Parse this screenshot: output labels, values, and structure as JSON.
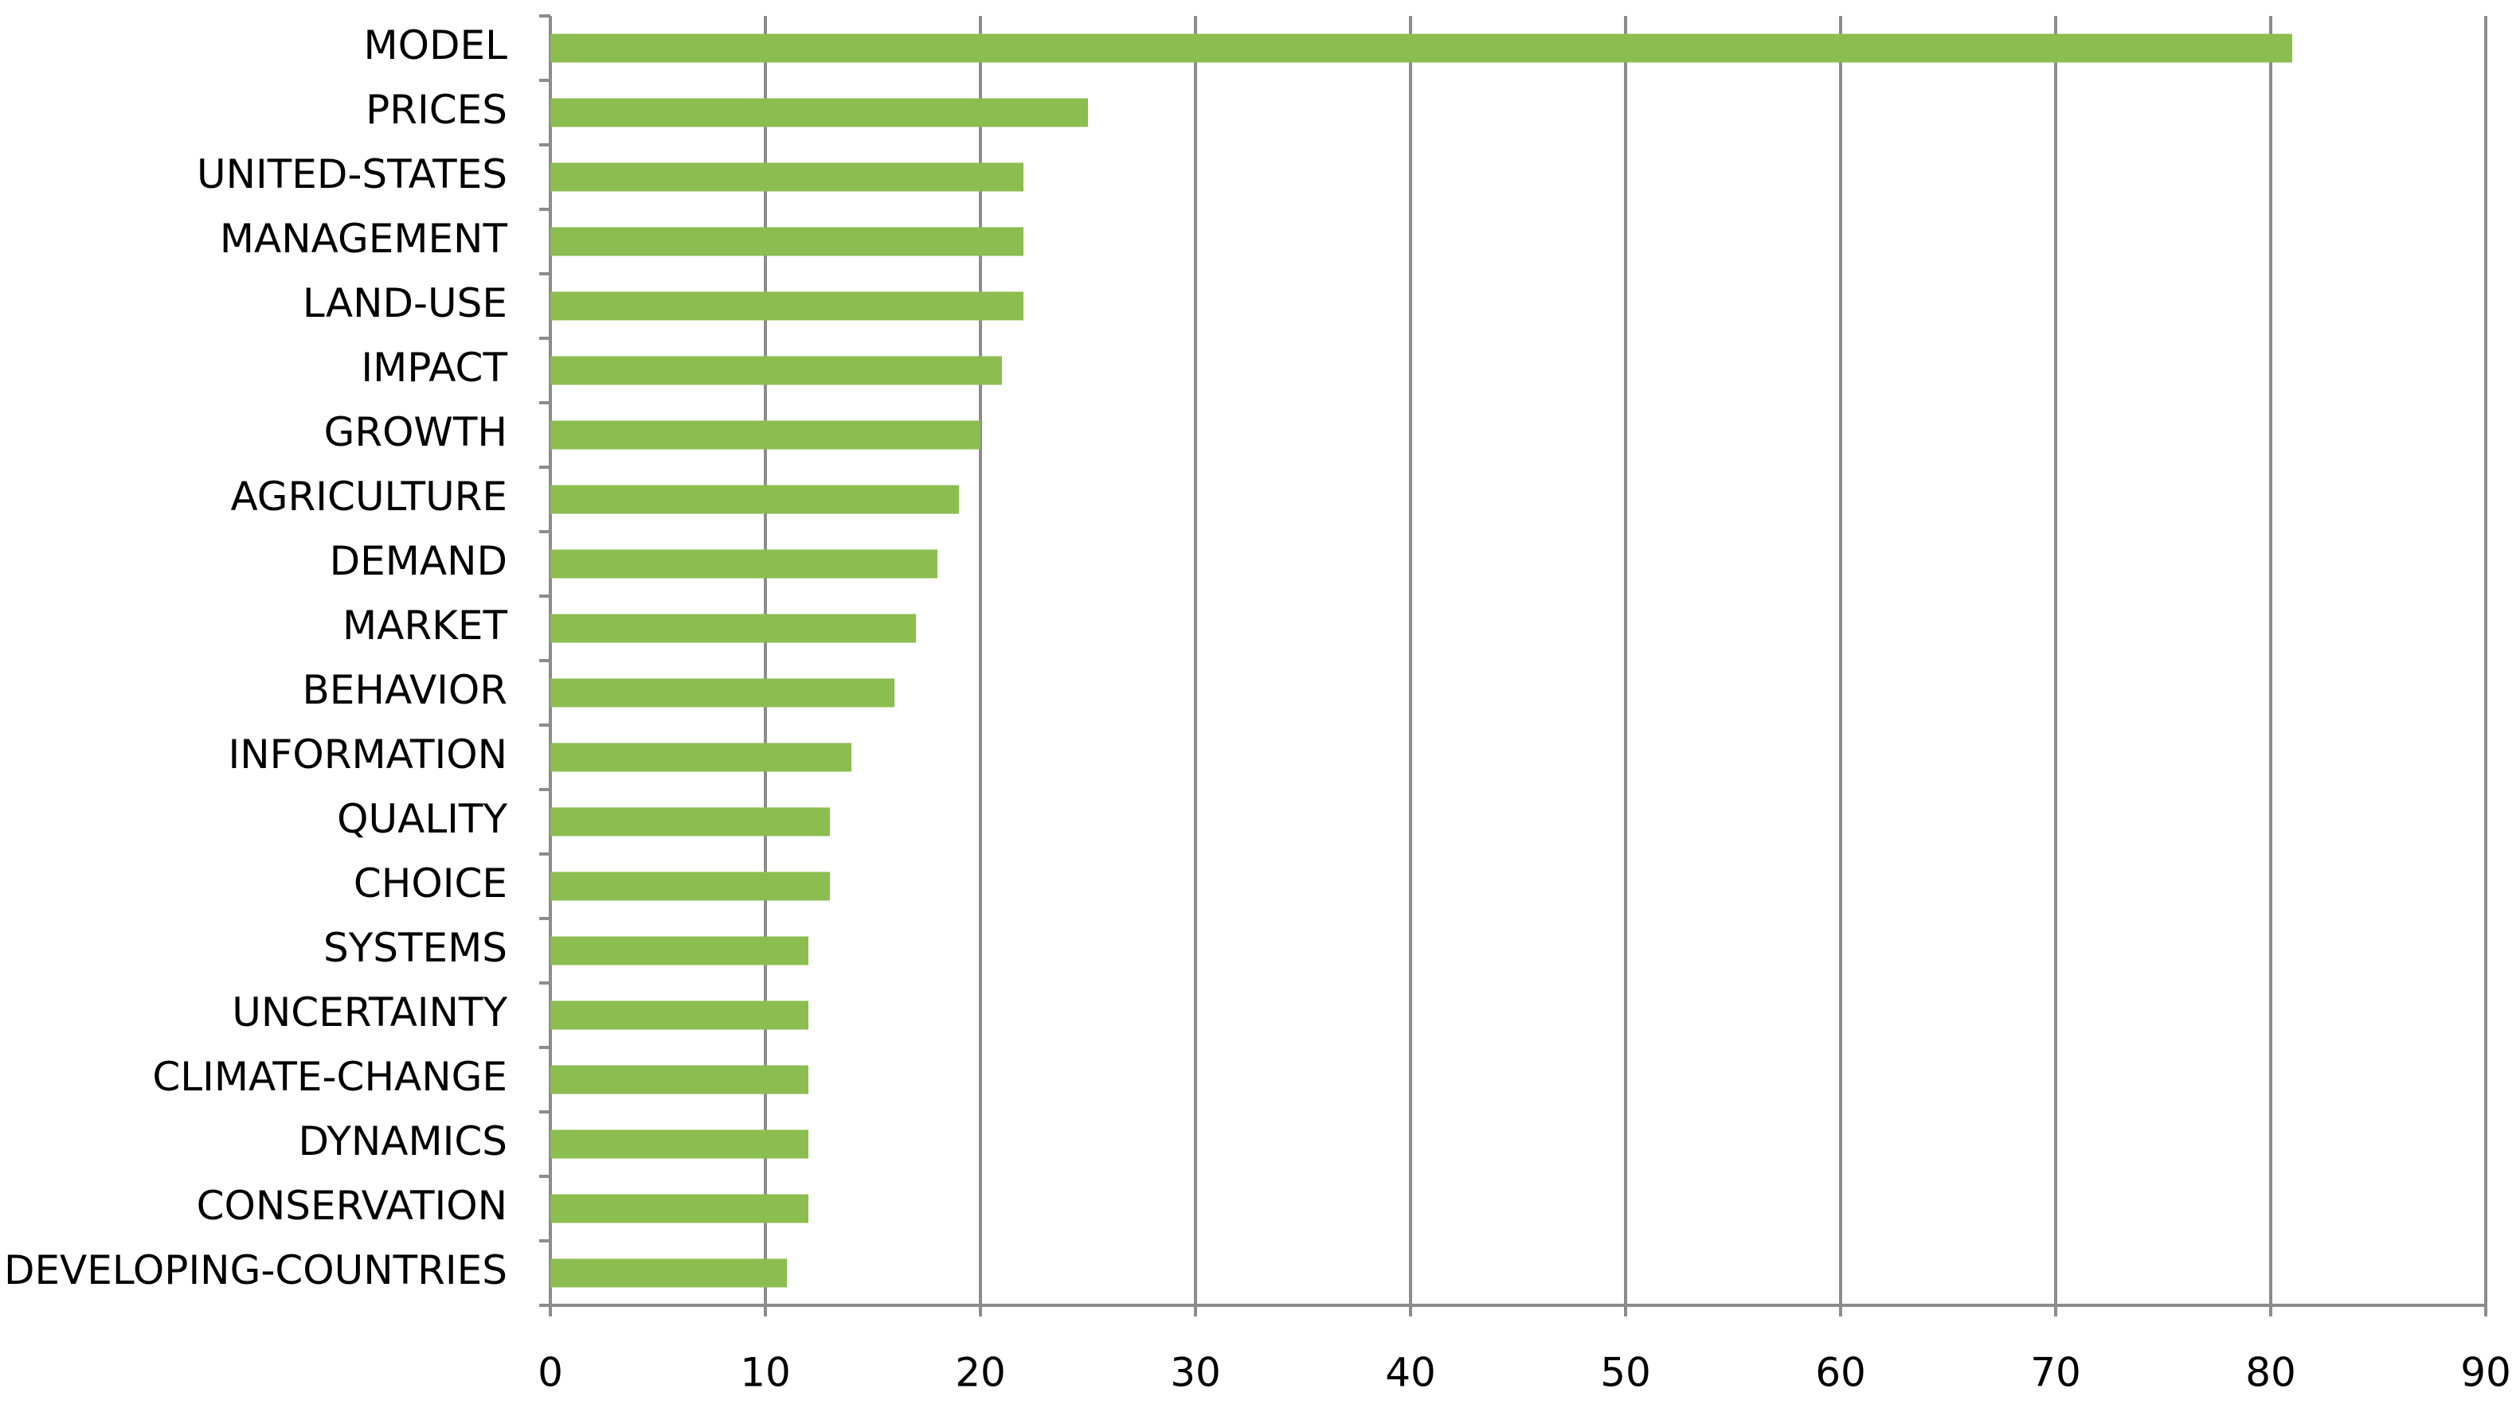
{
  "chart_data": {
    "type": "bar",
    "orientation": "horizontal",
    "categories": [
      "MODEL",
      "PRICES",
      "UNITED-STATES",
      "MANAGEMENT",
      "LAND-USE",
      "IMPACT",
      "GROWTH",
      "AGRICULTURE",
      "DEMAND",
      "MARKET",
      "BEHAVIOR",
      "INFORMATION",
      "QUALITY",
      "CHOICE",
      "SYSTEMS",
      "UNCERTAINTY",
      "CLIMATE-CHANGE",
      "DYNAMICS",
      "CONSERVATION",
      "DEVELOPING-COUNTRIES"
    ],
    "values": [
      81,
      25,
      22,
      22,
      22,
      21,
      20,
      19,
      18,
      17,
      16,
      14,
      13,
      13,
      12,
      12,
      12,
      12,
      12,
      11
    ],
    "color": "#8bbd50",
    "xlim": [
      0,
      90
    ],
    "xticks": [
      0,
      10,
      20,
      30,
      40,
      50,
      60,
      70,
      80,
      90
    ],
    "grid": true
  }
}
